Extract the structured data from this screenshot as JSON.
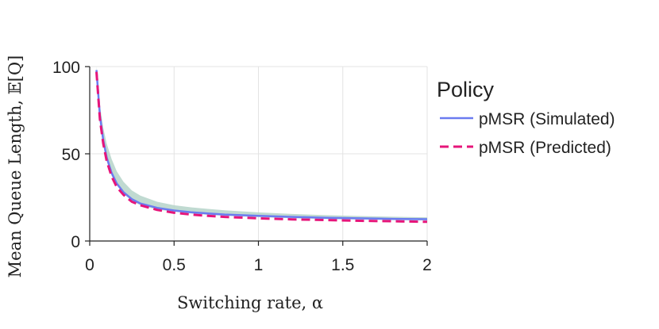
{
  "chart_data": {
    "type": "line",
    "xlabel": "Switching rate, α",
    "ylabel": "Mean Queue Length, 𝔼[Q]",
    "xlim": [
      0,
      2
    ],
    "ylim": [
      0,
      100
    ],
    "x_ticks": [
      0,
      0.5,
      1,
      1.5,
      2
    ],
    "x_tick_labels": [
      "0",
      "0.5",
      "1",
      "1.5",
      "2"
    ],
    "y_ticks": [
      0,
      50,
      100
    ],
    "y_tick_labels": [
      "0",
      "50",
      "100"
    ],
    "grid": true,
    "legend_title": "Policy",
    "legend_position": "right",
    "x": [
      0.04,
      0.06,
      0.08,
      0.1,
      0.13,
      0.16,
      0.2,
      0.25,
      0.3,
      0.4,
      0.5,
      0.6,
      0.7,
      0.8,
      1.0,
      1.2,
      1.4,
      1.6,
      1.8,
      2.0
    ],
    "series": [
      {
        "name": "pMSR (Simulated)",
        "color": "#6b7bf0",
        "dash": "solid",
        "values": [
          98,
          72,
          58,
          48,
          39,
          33,
          28,
          24,
          21.5,
          19,
          17.5,
          16.5,
          15.8,
          15.2,
          14.4,
          13.8,
          13.3,
          13.0,
          12.7,
          12.5
        ]
      },
      {
        "name": "pMSR (Predicted)",
        "color": "#e6157a",
        "dash": "dashed",
        "values": [
          97,
          70,
          56,
          46,
          37,
          31,
          26.5,
          22.5,
          20.5,
          17.8,
          16.2,
          15.2,
          14.4,
          13.8,
          13.0,
          12.4,
          12.0,
          11.6,
          11.3,
          11.0
        ]
      }
    ],
    "confidence_band": {
      "color": "#b5d3c9",
      "lower": [
        96,
        70,
        56,
        46,
        37.5,
        32,
        27,
        23,
        20.5,
        18,
        16.8,
        15.8,
        15.0,
        14.5,
        13.7,
        13.1,
        12.6,
        12.3,
        12.0,
        11.8
      ],
      "upper": [
        100,
        78,
        65,
        56,
        47,
        40,
        34,
        29,
        26,
        22.5,
        20.5,
        19.3,
        18.4,
        17.6,
        16.4,
        15.5,
        14.8,
        14.3,
        13.9,
        13.6
      ]
    }
  }
}
